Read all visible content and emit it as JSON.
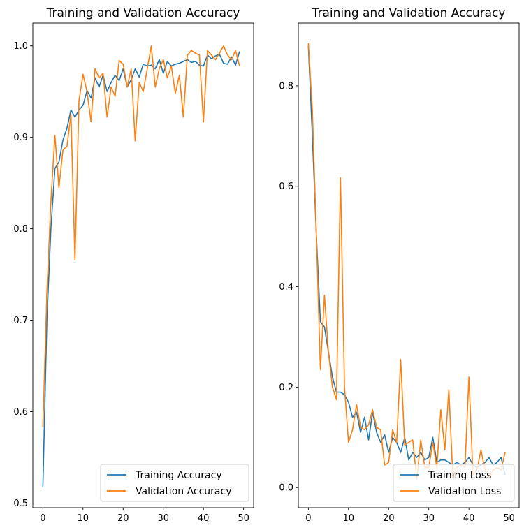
{
  "colors": {
    "training": "#1f77b4",
    "validation": "#ff7f0e",
    "axis": "#000000",
    "legend_border": "#cccccc"
  },
  "chart_data": [
    {
      "type": "line",
      "title": "Training and Validation Accuracy",
      "xlabel": "",
      "ylabel": "",
      "xlim": [
        -2.5,
        52.5
      ],
      "ylim": [
        0.495,
        1.025
      ],
      "grid": false,
      "legend_position": "lower-right",
      "x_ticks": [
        0,
        10,
        20,
        30,
        40,
        50
      ],
      "x_tick_labels": [
        "0",
        "10",
        "20",
        "30",
        "40",
        "50"
      ],
      "y_ticks": [
        0.5,
        0.6,
        0.7,
        0.8,
        0.9,
        1.0
      ],
      "y_tick_labels": [
        "0.5",
        "0.6",
        "0.7",
        "0.8",
        "0.9",
        "1.0"
      ],
      "x": [
        0,
        1,
        2,
        3,
        4,
        5,
        6,
        7,
        8,
        9,
        10,
        11,
        12,
        13,
        14,
        15,
        16,
        17,
        18,
        19,
        20,
        21,
        22,
        23,
        24,
        25,
        26,
        27,
        28,
        29,
        30,
        31,
        32,
        33,
        34,
        35,
        36,
        37,
        38,
        39,
        40,
        41,
        42,
        43,
        44,
        45,
        46,
        47,
        48,
        49
      ],
      "series": [
        {
          "name": "Training Accuracy",
          "color_key": "training",
          "values": [
            0.517,
            0.7,
            0.8,
            0.866,
            0.873,
            0.897,
            0.91,
            0.93,
            0.922,
            0.93,
            0.935,
            0.951,
            0.943,
            0.965,
            0.955,
            0.968,
            0.95,
            0.96,
            0.968,
            0.962,
            0.975,
            0.955,
            0.963,
            0.975,
            0.966,
            0.98,
            0.978,
            0.979,
            0.975,
            0.985,
            0.97,
            0.983,
            0.978,
            0.98,
            0.981,
            0.983,
            0.985,
            0.982,
            0.983,
            0.979,
            0.978,
            0.99,
            0.986,
            0.989,
            0.991,
            0.981,
            0.98,
            0.988,
            0.979,
            0.994
          ]
        },
        {
          "name": "Validation Accuracy",
          "color_key": "validation",
          "values": [
            0.583,
            0.73,
            0.83,
            0.902,
            0.845,
            0.886,
            0.89,
            0.925,
            0.766,
            0.94,
            0.969,
            0.95,
            0.917,
            0.975,
            0.965,
            0.97,
            0.922,
            0.955,
            0.945,
            0.984,
            0.98,
            0.955,
            0.975,
            0.896,
            0.96,
            0.95,
            0.975,
            1.0,
            0.955,
            0.975,
            0.985,
            0.965,
            0.978,
            0.948,
            0.968,
            0.922,
            0.99,
            0.995,
            0.992,
            0.99,
            0.917,
            0.995,
            0.99,
            0.985,
            0.992,
            1.0,
            0.99,
            0.985,
            0.995,
            0.978
          ]
        }
      ]
    },
    {
      "type": "line",
      "title": "Training and Validation Accuracy",
      "xlabel": "",
      "ylabel": "",
      "xlim": [
        -2.5,
        52.5
      ],
      "ylim": [
        -0.04,
        0.925
      ],
      "grid": false,
      "legend_position": "lower-right",
      "x_ticks": [
        0,
        10,
        20,
        30,
        40,
        50
      ],
      "x_tick_labels": [
        "0",
        "10",
        "20",
        "30",
        "40",
        "50"
      ],
      "y_ticks": [
        0.0,
        0.2,
        0.4,
        0.6,
        0.8
      ],
      "y_tick_labels": [
        "0.0",
        "0.2",
        "0.4",
        "0.6",
        "0.8"
      ],
      "x": [
        0,
        1,
        2,
        3,
        4,
        5,
        6,
        7,
        8,
        9,
        10,
        11,
        12,
        13,
        14,
        15,
        16,
        17,
        18,
        19,
        20,
        21,
        22,
        23,
        24,
        25,
        26,
        27,
        28,
        29,
        30,
        31,
        32,
        33,
        34,
        35,
        36,
        37,
        38,
        39,
        40,
        41,
        42,
        43,
        44,
        45,
        46,
        47,
        48,
        49
      ],
      "series": [
        {
          "name": "Training Loss",
          "color_key": "training",
          "values": [
            0.88,
            0.7,
            0.5,
            0.33,
            0.32,
            0.27,
            0.22,
            0.19,
            0.19,
            0.185,
            0.17,
            0.14,
            0.15,
            0.11,
            0.14,
            0.095,
            0.15,
            0.11,
            0.09,
            0.105,
            0.07,
            0.1,
            0.09,
            0.07,
            0.1,
            0.055,
            0.07,
            0.06,
            0.07,
            0.055,
            0.06,
            0.1,
            0.05,
            0.055,
            0.055,
            0.05,
            0.045,
            0.05,
            0.045,
            0.05,
            0.06,
            0.045,
            0.04,
            0.045,
            0.05,
            0.06,
            0.045,
            0.05,
            0.06,
            0.025
          ]
        },
        {
          "name": "Validation Loss",
          "color_key": "validation",
          "values": [
            0.885,
            0.75,
            0.5,
            0.235,
            0.383,
            0.27,
            0.2,
            0.175,
            0.617,
            0.2,
            0.09,
            0.115,
            0.165,
            0.12,
            0.115,
            0.125,
            0.155,
            0.12,
            0.115,
            0.045,
            0.05,
            0.115,
            0.09,
            0.255,
            0.085,
            0.09,
            0.095,
            0.015,
            0.095,
            0.04,
            0.04,
            0.09,
            0.04,
            0.155,
            0.075,
            0.195,
            0.02,
            0.04,
            0.045,
            0.04,
            0.22,
            0.025,
            0.035,
            0.075,
            0.035,
            0.02,
            0.035,
            0.04,
            0.035,
            0.07
          ]
        }
      ]
    }
  ]
}
